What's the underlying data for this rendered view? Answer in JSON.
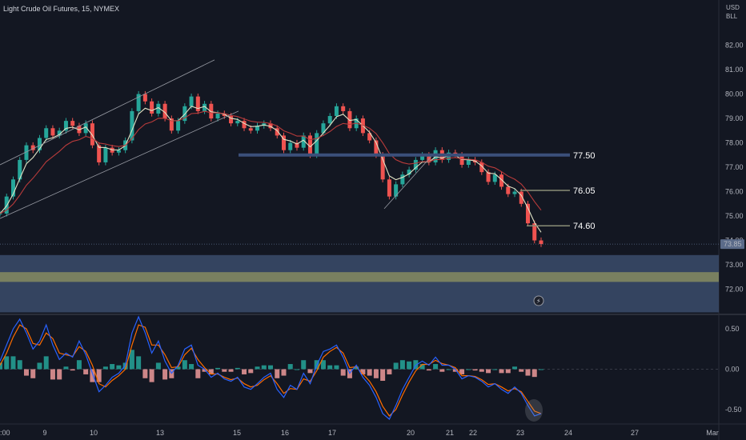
{
  "header": {
    "title": "Light Crude Oil Futures, 15, NYMEX",
    "currency": "USD",
    "unit": "BLL"
  },
  "colors": {
    "background": "#131722",
    "up": "#26a69a",
    "down": "#ef5350",
    "level_line": "#2a3a5c",
    "zone_blue": "#3b4c6b",
    "zone_olive": "#7d8460",
    "macd_line": "#2962ff",
    "signal_line": "#ff6d00",
    "last_price_bg": "#5b6b89"
  },
  "chart_data": [
    {
      "type": "line",
      "panel": "price",
      "ylim": [
        71.0,
        83.2
      ],
      "y_ticks": [
        "82.00",
        "81.00",
        "80.00",
        "79.00",
        "78.00",
        "77.00",
        "76.00",
        "75.00",
        "74.00",
        "73.00",
        "72.00"
      ],
      "x_tick_labels": [
        ":00",
        "9",
        "10",
        "13",
        "15",
        "16",
        "17",
        "20",
        "21",
        "22",
        "23",
        "24",
        "27",
        "Mar"
      ],
      "series": [
        {
          "values": [
            75.1,
            75.8,
            76.5,
            77.3,
            77.9,
            77.7,
            78.2,
            78.6,
            78.3,
            78.5,
            78.9,
            78.7,
            78.4,
            78.8,
            77.9,
            77.2,
            77.8,
            77.6,
            77.7,
            78.1,
            79.3,
            80.0,
            79.7,
            79.2,
            79.6,
            79.0,
            78.5,
            78.9,
            79.5,
            79.9,
            79.3,
            79.6,
            79.0,
            79.2,
            79.1,
            78.8,
            78.9,
            78.6,
            78.5,
            78.7,
            78.8,
            78.6,
            78.3,
            77.7,
            78.0,
            77.8,
            78.3,
            77.5,
            78.4,
            78.8,
            79.1,
            79.5,
            79.3,
            78.6,
            79.0,
            78.4,
            78.1,
            77.5,
            76.5,
            75.8,
            76.3,
            76.7,
            76.9,
            77.3,
            77.5,
            77.2,
            77.7,
            77.3,
            77.6,
            77.5,
            77.1,
            77.3,
            77.2,
            76.8,
            76.4,
            76.7,
            76.2,
            75.9,
            76.0,
            75.5,
            74.7,
            74.0,
            73.85
          ]
        }
      ],
      "levels": [
        {
          "label": "77.50",
          "value": 77.5
        },
        {
          "label": "76.05",
          "value": 76.05
        },
        {
          "label": "74.60",
          "value": 74.6
        }
      ],
      "zones": [
        {
          "from": 71.05,
          "to": 73.4
        },
        {
          "from": 72.3,
          "to": 72.7
        }
      ],
      "last_price": "73.85"
    },
    {
      "type": "line",
      "panel": "macd",
      "ylim": [
        -0.68,
        0.68
      ],
      "y_ticks": [
        "0.50",
        "0.00",
        "-0.50"
      ],
      "series": [
        {
          "name": "",
          "values": [
            0.1,
            0.3,
            0.5,
            0.62,
            0.45,
            0.25,
            0.35,
            0.55,
            0.3,
            0.12,
            0.2,
            0.15,
            0.35,
            0.18,
            -0.05,
            -0.28,
            -0.2,
            -0.1,
            -0.05,
            0.05,
            0.45,
            0.65,
            0.45,
            0.2,
            0.35,
            0.1,
            -0.05,
            0.05,
            0.25,
            0.3,
            0.05,
            0.0,
            -0.1,
            -0.05,
            -0.12,
            -0.15,
            -0.1,
            -0.22,
            -0.25,
            -0.18,
            -0.1,
            -0.05,
            -0.25,
            -0.35,
            -0.2,
            -0.25,
            -0.05,
            -0.18,
            0.05,
            0.22,
            0.25,
            0.3,
            0.15,
            -0.05,
            0.05,
            -0.1,
            -0.2,
            -0.35,
            -0.55,
            -0.62,
            -0.45,
            -0.25,
            -0.1,
            0.05,
            0.1,
            0.05,
            0.15,
            0.05,
            0.05,
            0.0,
            -0.12,
            -0.08,
            -0.1,
            -0.15,
            -0.22,
            -0.18,
            -0.25,
            -0.3,
            -0.22,
            -0.3,
            -0.45,
            -0.58,
            -0.55
          ]
        },
        {
          "name": "",
          "values": [
            0.05,
            0.2,
            0.4,
            0.55,
            0.5,
            0.32,
            0.3,
            0.45,
            0.38,
            0.2,
            0.18,
            0.16,
            0.28,
            0.22,
            0.05,
            -0.18,
            -0.22,
            -0.14,
            -0.08,
            0.0,
            0.3,
            0.55,
            0.52,
            0.3,
            0.3,
            0.18,
            0.02,
            0.03,
            0.18,
            0.26,
            0.12,
            0.02,
            -0.06,
            -0.06,
            -0.1,
            -0.13,
            -0.11,
            -0.18,
            -0.22,
            -0.2,
            -0.13,
            -0.08,
            -0.18,
            -0.3,
            -0.24,
            -0.25,
            -0.12,
            -0.15,
            -0.02,
            0.15,
            0.22,
            0.27,
            0.2,
            0.02,
            0.03,
            -0.06,
            -0.15,
            -0.28,
            -0.46,
            -0.58,
            -0.5,
            -0.32,
            -0.16,
            -0.02,
            0.06,
            0.06,
            0.11,
            0.07,
            0.05,
            0.02,
            -0.08,
            -0.08,
            -0.09,
            -0.13,
            -0.19,
            -0.18,
            -0.22,
            -0.27,
            -0.24,
            -0.28,
            -0.4,
            -0.52,
            -0.55
          ]
        }
      ],
      "histogram_scale_note": "",
      "last_value_tick": "0.00"
    }
  ]
}
